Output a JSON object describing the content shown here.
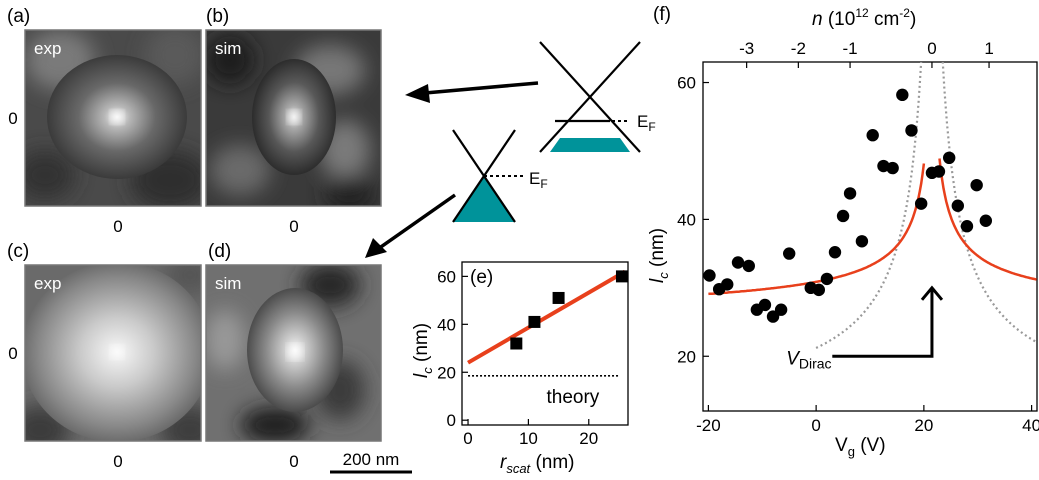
{
  "panels": {
    "a": {
      "label": "(a)",
      "tag": "exp",
      "xtick": "0",
      "ytick": "0"
    },
    "b": {
      "label": "(b)",
      "tag": "sim",
      "xtick": "0"
    },
    "c": {
      "label": "(c)",
      "tag": "exp",
      "xtick": "0",
      "ytick": "0"
    },
    "d": {
      "label": "(d)",
      "tag": "sim",
      "xtick": "0"
    },
    "e": {
      "label": "(e)"
    },
    "f": {
      "label": "(f)"
    }
  },
  "scale_bar": "200 nm",
  "cone_labels": {
    "upper": "E",
    "upper_sub": "F",
    "lower": "E",
    "lower_sub": "F"
  },
  "colors": {
    "cone_fill": "#00939a",
    "fit_line": "#e8401c",
    "dirac_curve": "#999999",
    "marker": "#000000"
  },
  "chart_data": [
    {
      "type": "scatter",
      "panel": "e",
      "xlabel": "r",
      "xlabel_sub": "scat",
      "xlabel_unit": " (nm)",
      "ylabel": "l",
      "ylabel_sub": "c",
      "ylabel_unit": " (nm)",
      "xlim": [
        -1,
        26.5
      ],
      "ylim": [
        -2,
        66
      ],
      "xticks": [
        0,
        10,
        20
      ],
      "yticks": [
        0,
        20,
        40,
        60
      ],
      "points": [
        {
          "x": 8,
          "y": 32
        },
        {
          "x": 11,
          "y": 41
        },
        {
          "x": 15,
          "y": 51
        },
        {
          "x": 25.5,
          "y": 60
        }
      ],
      "fit_line": {
        "x": [
          0,
          26
        ],
        "y": [
          24,
          62
        ]
      },
      "theory_line": {
        "y": 18.5,
        "x": [
          0,
          25
        ]
      },
      "annotation": "theory",
      "marker": "square"
    },
    {
      "type": "scatter",
      "panel": "f",
      "xlabel": "V",
      "xlabel_sub": "g",
      "xlabel_unit": " (V)",
      "ylabel": "l",
      "ylabel_sub": "c",
      "ylabel_unit": " (nm)",
      "top_xlabel": "n",
      "top_xlabel_unit": " (10",
      "top_xlabel_exp": "12",
      "top_xlabel_tail": " cm",
      "top_xlabel_exp2": "-2",
      "top_xlabel_close": ")",
      "xlim": [
        -21,
        41
      ],
      "ylim": [
        12,
        63
      ],
      "xticks": [
        -20,
        0,
        20,
        40
      ],
      "yticks": [
        20,
        40,
        60
      ],
      "top_ticks": [
        {
          "label": "-3",
          "x": -12.9
        },
        {
          "label": "-2",
          "x": -3.3
        },
        {
          "label": "-1",
          "x": 6.3
        },
        {
          "label": "0",
          "x": 21.5
        },
        {
          "label": "1",
          "x": 32.1
        }
      ],
      "dirac_x": 21.5,
      "dirac_label": "V",
      "dirac_label_sub": "Dirac",
      "points": [
        {
          "x": -19.8,
          "y": 31.8
        },
        {
          "x": -18,
          "y": 29.8
        },
        {
          "x": -16.5,
          "y": 30.5
        },
        {
          "x": -14.5,
          "y": 33.7
        },
        {
          "x": -12.5,
          "y": 33.2
        },
        {
          "x": -11,
          "y": 26.8
        },
        {
          "x": -9.5,
          "y": 27.5
        },
        {
          "x": -8,
          "y": 25.8
        },
        {
          "x": -6.5,
          "y": 26.8
        },
        {
          "x": -5,
          "y": 35
        },
        {
          "x": -1,
          "y": 30
        },
        {
          "x": 0.5,
          "y": 29.7
        },
        {
          "x": 2,
          "y": 31.3
        },
        {
          "x": 3.5,
          "y": 35.2
        },
        {
          "x": 5,
          "y": 40.5
        },
        {
          "x": 6.3,
          "y": 43.8
        },
        {
          "x": 8.5,
          "y": 36.8
        },
        {
          "x": 10.5,
          "y": 52.3
        },
        {
          "x": 12.5,
          "y": 47.8
        },
        {
          "x": 14.2,
          "y": 47.5
        },
        {
          "x": 16,
          "y": 58.2
        },
        {
          "x": 17.7,
          "y": 53
        },
        {
          "x": 19.5,
          "y": 42.3
        },
        {
          "x": 21.5,
          "y": 46.8
        },
        {
          "x": 22.8,
          "y": 47
        },
        {
          "x": 24.7,
          "y": 49
        },
        {
          "x": 26.3,
          "y": 42
        },
        {
          "x": 28,
          "y": 39
        },
        {
          "x": 29.8,
          "y": 45
        },
        {
          "x": 31.5,
          "y": 39.8
        }
      ],
      "marker": "circle"
    }
  ]
}
